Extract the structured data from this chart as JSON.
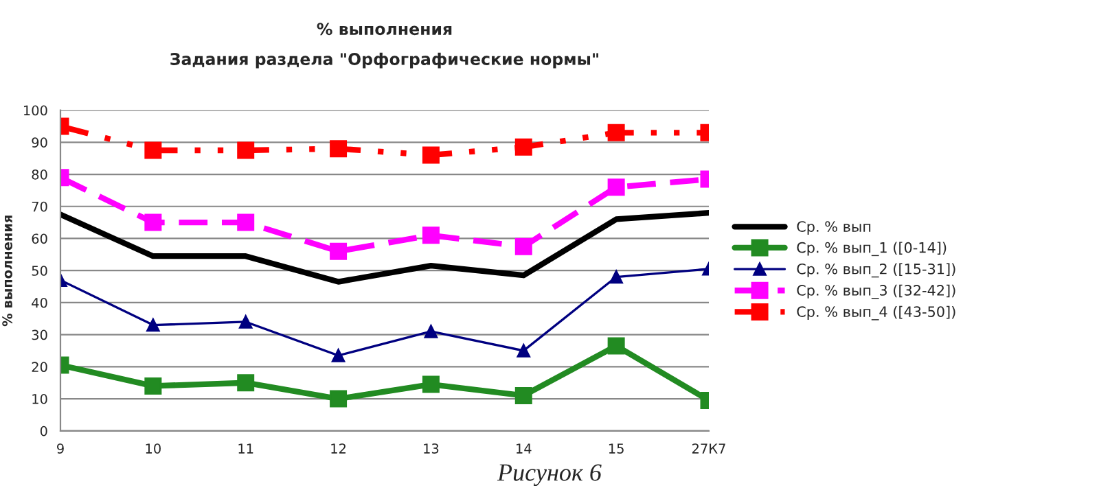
{
  "chart_data": {
    "type": "line",
    "title": "% выполнения",
    "subtitle": "Задания раздела \"Орфографические нормы\"",
    "ylabel": "% выполнения",
    "categories": [
      "9",
      "10",
      "11",
      "12",
      "13",
      "14",
      "15",
      "27К7"
    ],
    "series": [
      {
        "name": "Ср. % вып",
        "color": "#000000",
        "marker": "none",
        "line_style": "solid",
        "values": [
          67.5,
          54.5,
          54.5,
          46.5,
          51.5,
          48.5,
          66,
          68
        ]
      },
      {
        "name": "Ср. % вып_1 ([0-14])",
        "color": "#228b22",
        "marker": "square",
        "line_style": "solid",
        "values": [
          20.5,
          14,
          15,
          10,
          14.5,
          11,
          26.5,
          9.5
        ]
      },
      {
        "name": "Ср. % вып_2 ([15-31])",
        "color": "#000080",
        "marker": "triangle",
        "line_style": "solid",
        "values": [
          47,
          33,
          34,
          23.5,
          31,
          25,
          48,
          50.5
        ]
      },
      {
        "name": "Ср. % вып_3 ([32-42])",
        "color": "#ff00ff",
        "marker": "square",
        "line_style": "dashed",
        "values": [
          79,
          65,
          65,
          56,
          61,
          57.5,
          76,
          78.5
        ]
      },
      {
        "name": "Ср. % вып_4 ([43-50])",
        "color": "#ff0000",
        "marker": "square",
        "line_style": "dotted",
        "values": [
          95,
          87.5,
          87.5,
          88,
          86,
          88.5,
          93,
          93
        ]
      }
    ],
    "ylim": [
      0,
      100
    ],
    "yticks": [
      0,
      10,
      20,
      30,
      40,
      50,
      60,
      70,
      80,
      90,
      100
    ],
    "grid": "y",
    "legend": "right",
    "annotations": [
      "Рисунок 6"
    ]
  }
}
